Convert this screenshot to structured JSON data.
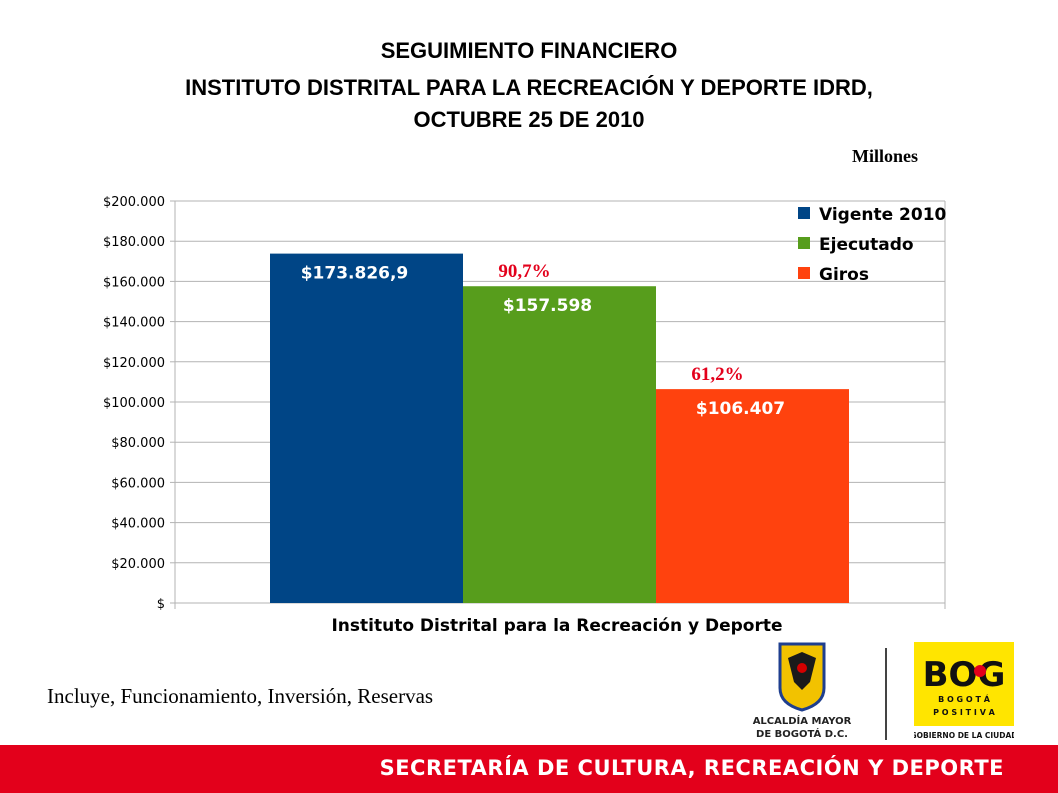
{
  "header": {
    "line1": "SEGUIMIENTO FINANCIERO",
    "line2": "INSTITUTO DISTRITAL PARA LA RECREACIÓN Y DEPORTE IDRD,",
    "line3": "OCTUBRE 25 DE 2010",
    "units": "Millones"
  },
  "chart_data": {
    "type": "bar",
    "xlabel": "Instituto Distrital para la Recreación y Deporte",
    "ylabel": "",
    "ylim": [
      0,
      200000
    ],
    "yticks": [
      0,
      20000,
      40000,
      60000,
      80000,
      100000,
      120000,
      140000,
      160000,
      180000,
      200000
    ],
    "ytick_labels": [
      "$",
      "$20.000",
      "$40.000",
      "$60.000",
      "$80.000",
      "$100.000",
      "$120.000",
      "$140.000",
      "$160.000",
      "$180.000",
      "$200.000"
    ],
    "grid": true,
    "legend_position": "top-right",
    "series": [
      {
        "name": "Vigente 2010",
        "value": 173826.9,
        "label": "$173.826,9",
        "color": "#004586",
        "annotation": ""
      },
      {
        "name": "Ejecutado",
        "value": 157598,
        "label": "$157.598",
        "color": "#579d1c",
        "annotation": "90,7%"
      },
      {
        "name": "Giros",
        "value": 106407,
        "label": "$106.407",
        "color": "#ff420e",
        "annotation": "61,2%"
      }
    ],
    "annotation_color": "#e3001b"
  },
  "footnote": "Incluye, Funcionamiento, Inversión, Reservas",
  "logos": {
    "alcaldia_line1": "ALCALDÍA MAYOR",
    "alcaldia_line2": "DE BOGOTÁ D.C.",
    "bog_main": "BOG",
    "bog_line1": "B O G O T Á",
    "bog_line2": "P O S I T I V A",
    "bog_caption": "GOBIERNO DE LA CIUDAD"
  },
  "footer": {
    "text": "SECRETARÍA DE CULTURA, RECREACIÓN Y DEPORTE"
  }
}
